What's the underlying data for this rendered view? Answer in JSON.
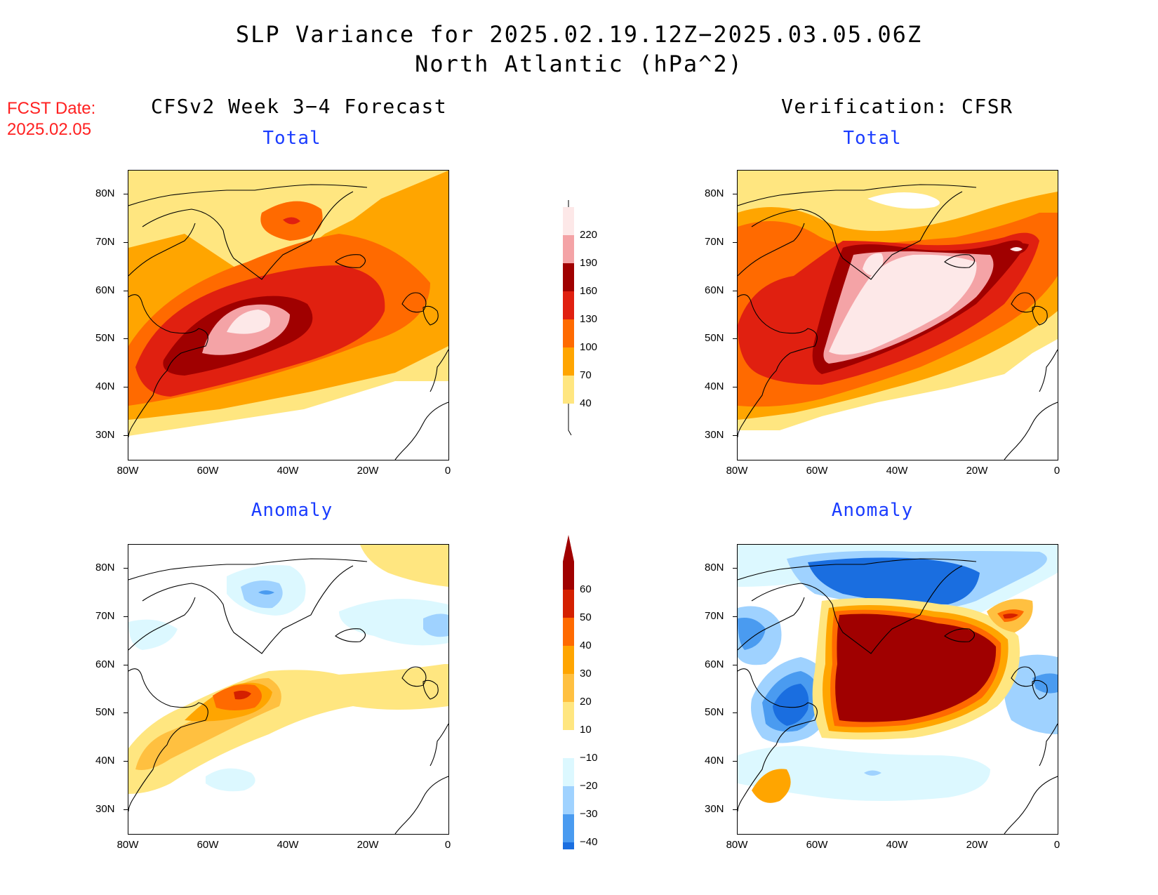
{
  "title": {
    "line1": "SLP Variance for 2025.02.19.12Z−2025.03.05.06Z",
    "line2": "North Atlantic (hPa^2)"
  },
  "fcst_date": {
    "label": "FCST Date:",
    "value": "2025.02.05"
  },
  "columns": {
    "left": "CFSv2 Week 3−4 Forecast",
    "right": "Verification: CFSR"
  },
  "panels": {
    "total": "Total",
    "anomaly": "Anomaly"
  },
  "axes": {
    "lat_labels": [
      "80N",
      "70N",
      "60N",
      "50N",
      "40N",
      "30N"
    ],
    "lon_labels": [
      "80W",
      "60W",
      "40W",
      "20W",
      "0"
    ],
    "lat_range": [
      25,
      85
    ],
    "lon_range": [
      -80,
      0
    ]
  },
  "colorbars": {
    "total": {
      "levels": [
        "220",
        "190",
        "160",
        "130",
        "100",
        "70",
        "40"
      ],
      "colors": [
        "#fde8e8",
        "#f4a3a6",
        "#a00000",
        "#e02010",
        "#ff6a00",
        "#ffa500",
        "#ffe680"
      ]
    },
    "anomaly": {
      "levels": [
        "60",
        "50",
        "40",
        "30",
        "20",
        "10",
        "−10",
        "−20",
        "−30",
        "−40"
      ],
      "colors": [
        "#a00000",
        "#d42000",
        "#ff6a00",
        "#ffa500",
        "#ffc040",
        "#ffe680",
        "#ffffff",
        "#dcf8ff",
        "#9fd2ff",
        "#4a9bf0",
        "#1a6ee0"
      ]
    }
  }
}
